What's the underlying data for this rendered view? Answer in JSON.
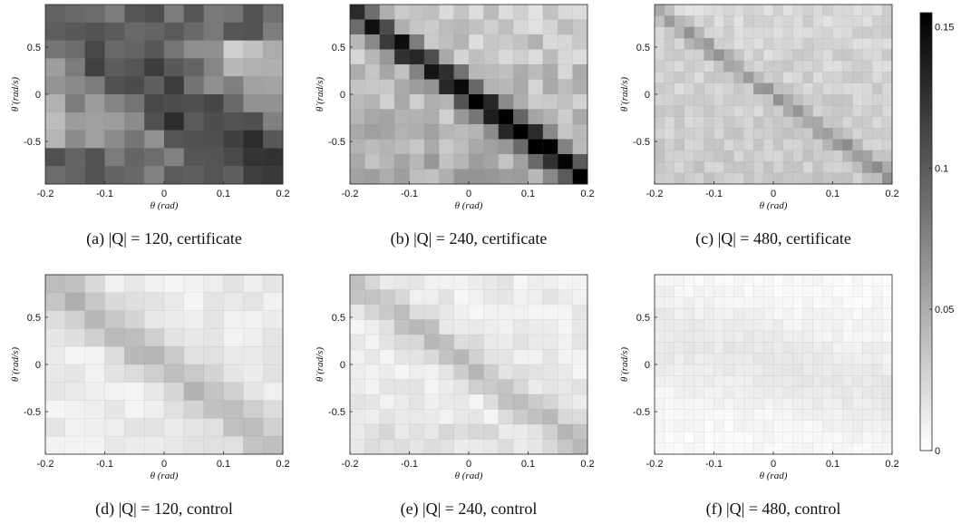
{
  "figure": {
    "colorbar": {
      "ticks": [
        "0",
        "0.05",
        "0.1",
        "0.15"
      ],
      "tick_values": [
        0,
        0.05,
        0.1,
        0.15
      ],
      "min": 0,
      "max": 0.155,
      "color_low": "#ffffff",
      "color_high": "#000000"
    }
  },
  "chart_data": [
    {
      "type": "heatmap",
      "caption": "(a) |Q| = 120, certificate",
      "xlabel": "θ (rad)",
      "ylabel": "θ̇ (rad/s)",
      "xticks": [
        "-0.2",
        "-0.1",
        "0",
        "0.1",
        "0.2"
      ],
      "yticks": [
        "0.5",
        "0",
        "-0.5"
      ],
      "xlim": [
        -0.2,
        0.2
      ],
      "ylim": [
        -0.95,
        0.95
      ],
      "grid": [
        12,
        10
      ],
      "pattern": {
        "base": 0.045,
        "gradient": 0.012,
        "band_sigma": 0.45,
        "band_amp": 0.07,
        "slope": 0.9,
        "upper_floor": 0.095,
        "upper_edge": 0.55,
        "lower_floor": 0.09,
        "lower_edge": -0.55,
        "noise": 0.018,
        "seed": 11
      }
    },
    {
      "type": "heatmap",
      "caption": "(b) |Q| = 240, certificate",
      "xlabel": "θ (rad)",
      "ylabel": "θ̇ (rad/s)",
      "xticks": [
        "-0.2",
        "-0.1",
        "0",
        "0.1",
        "0.2"
      ],
      "yticks": [
        "0.5",
        "0",
        "-0.5"
      ],
      "xlim": [
        -0.2,
        0.2
      ],
      "ylim": [
        -0.95,
        0.95
      ],
      "grid": [
        16,
        12
      ],
      "pattern": {
        "base": 0.04,
        "gradient": 0.012,
        "band_sigma": 0.13,
        "band_amp": 0.11,
        "slope": 0.9,
        "upper_floor": 0.04,
        "upper_edge": 0.9,
        "lower_floor": 0.045,
        "lower_edge": -0.85,
        "noise": 0.015,
        "seed": 23
      }
    },
    {
      "type": "heatmap",
      "caption": "(c) |Q| = 480, certificate",
      "xlabel": "θ (rad)",
      "ylabel": "θ̇ (rad/s)",
      "xticks": [
        "-0.2",
        "-0.1",
        "0",
        "0.1",
        "0.2"
      ],
      "yticks": [
        "0.5",
        "0",
        "-0.5"
      ],
      "xlim": [
        -0.2,
        0.2
      ],
      "ylim": [
        -0.95,
        0.95
      ],
      "grid": [
        24,
        16
      ],
      "pattern": {
        "base": 0.028,
        "gradient": 0.004,
        "band_sigma": 0.07,
        "band_amp": 0.035,
        "slope": 0.9,
        "upper_floor": 0,
        "upper_edge": 1,
        "lower_floor": 0,
        "lower_edge": -1,
        "noise": 0.008,
        "seed": 37
      }
    },
    {
      "type": "heatmap",
      "caption": "(d) |Q| = 120, control",
      "xlabel": "θ (rad)",
      "ylabel": "θ̇ (rad/s)",
      "xticks": [
        "-0.2",
        "-0.1",
        "0",
        "0.1",
        "0.2"
      ],
      "yticks": [
        "0.5",
        "0",
        "-0.5"
      ],
      "xlim": [
        -0.2,
        0.2
      ],
      "ylim": [
        -0.95,
        0.95
      ],
      "grid": [
        12,
        10
      ],
      "pattern": {
        "base": 0.012,
        "gradient": 0,
        "band_sigma": 0.18,
        "band_amp": 0.032,
        "slope": 0.9,
        "upper_floor": 0,
        "upper_edge": 1,
        "lower_floor": 0,
        "lower_edge": -1,
        "noise": 0.006,
        "seed": 41
      }
    },
    {
      "type": "heatmap",
      "caption": "(e) |Q| = 240, control",
      "xlabel": "θ (rad)",
      "ylabel": "θ̇ (rad/s)",
      "xticks": [
        "-0.2",
        "-0.1",
        "0",
        "0.1",
        "0.2"
      ],
      "yticks": [
        "0.5",
        "0",
        "-0.5"
      ],
      "xlim": [
        -0.2,
        0.2
      ],
      "ylim": [
        -0.95,
        0.95
      ],
      "grid": [
        16,
        12
      ],
      "pattern": {
        "base": 0.012,
        "gradient": 0,
        "band_sigma": 0.14,
        "band_amp": 0.03,
        "slope": 0.9,
        "upper_floor": 0,
        "upper_edge": 1,
        "lower_floor": 0.018,
        "lower_edge": -0.6,
        "noise": 0.007,
        "seed": 53
      }
    },
    {
      "type": "heatmap",
      "caption": "(f) |Q| = 480, control",
      "xlabel": "θ (rad)",
      "ylabel": "θ̇ (rad/s)",
      "xticks": [
        "-0.2",
        "-0.1",
        "0",
        "0.1",
        "0.2"
      ],
      "yticks": [
        "0.5",
        "0",
        "-0.5"
      ],
      "xlim": [
        -0.2,
        0.2
      ],
      "ylim": [
        -0.95,
        0.95
      ],
      "grid": [
        24,
        16
      ],
      "pattern": {
        "base": 0.004,
        "gradient": 0,
        "band_sigma": 0.35,
        "band_amp": 0.01,
        "slope": 0.3,
        "upper_floor": 0,
        "upper_edge": 1,
        "lower_floor": 0,
        "lower_edge": -1,
        "noise": 0.003,
        "seed": 67
      }
    }
  ]
}
